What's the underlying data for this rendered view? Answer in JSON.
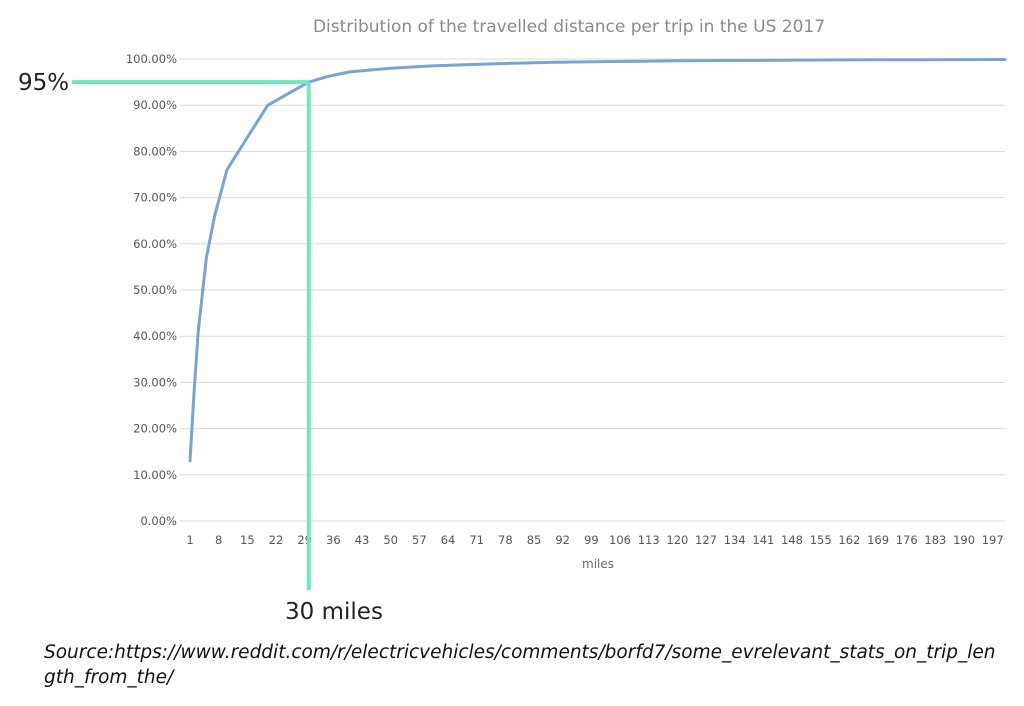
{
  "chart_data": {
    "type": "line",
    "title": "Distribution of the travelled distance per trip in the US 2017",
    "xlabel": "miles",
    "ylabel": "",
    "yticks": [
      "0.00%",
      "10.00%",
      "20.00%",
      "30.00%",
      "40.00%",
      "50.00%",
      "60.00%",
      "70.00%",
      "80.00%",
      "90.00%",
      "100.00%"
    ],
    "ylim": [
      0,
      100
    ],
    "xticks": [
      "1",
      "8",
      "15",
      "22",
      "29",
      "36",
      "43",
      "50",
      "57",
      "64",
      "71",
      "78",
      "85",
      "92",
      "99",
      "106",
      "113",
      "120",
      "127",
      "134",
      "141",
      "148",
      "155",
      "162",
      "169",
      "176",
      "183",
      "190",
      "197"
    ],
    "xlim": [
      1,
      200
    ],
    "grid": true,
    "series": [
      {
        "color": "#7aa3d2",
        "x": [
          1,
          2,
          3,
          4,
          5,
          7,
          10,
          15,
          20,
          25,
          30,
          35,
          40,
          50,
          60,
          70,
          80,
          90,
          100,
          120,
          140,
          160,
          180,
          200
        ],
        "y": [
          13,
          28,
          41,
          49,
          57,
          66,
          76,
          83,
          90,
          92.5,
          95,
          96.3,
          97.2,
          98,
          98.5,
          98.8,
          99.1,
          99.3,
          99.4,
          99.6,
          99.7,
          99.8,
          99.85,
          99.9
        ]
      }
    ],
    "annotations": {
      "y_marker": {
        "label": "95%",
        "value": 95,
        "color": "#6ee8c0"
      },
      "x_marker": {
        "label": "30 miles",
        "value": 30,
        "color": "#6ee8c0"
      }
    }
  },
  "source": "Source:https://www.reddit.com/r/electricvehicles/comments/borfd7/some_evrelevant_stats_on_trip_length_from_the/"
}
